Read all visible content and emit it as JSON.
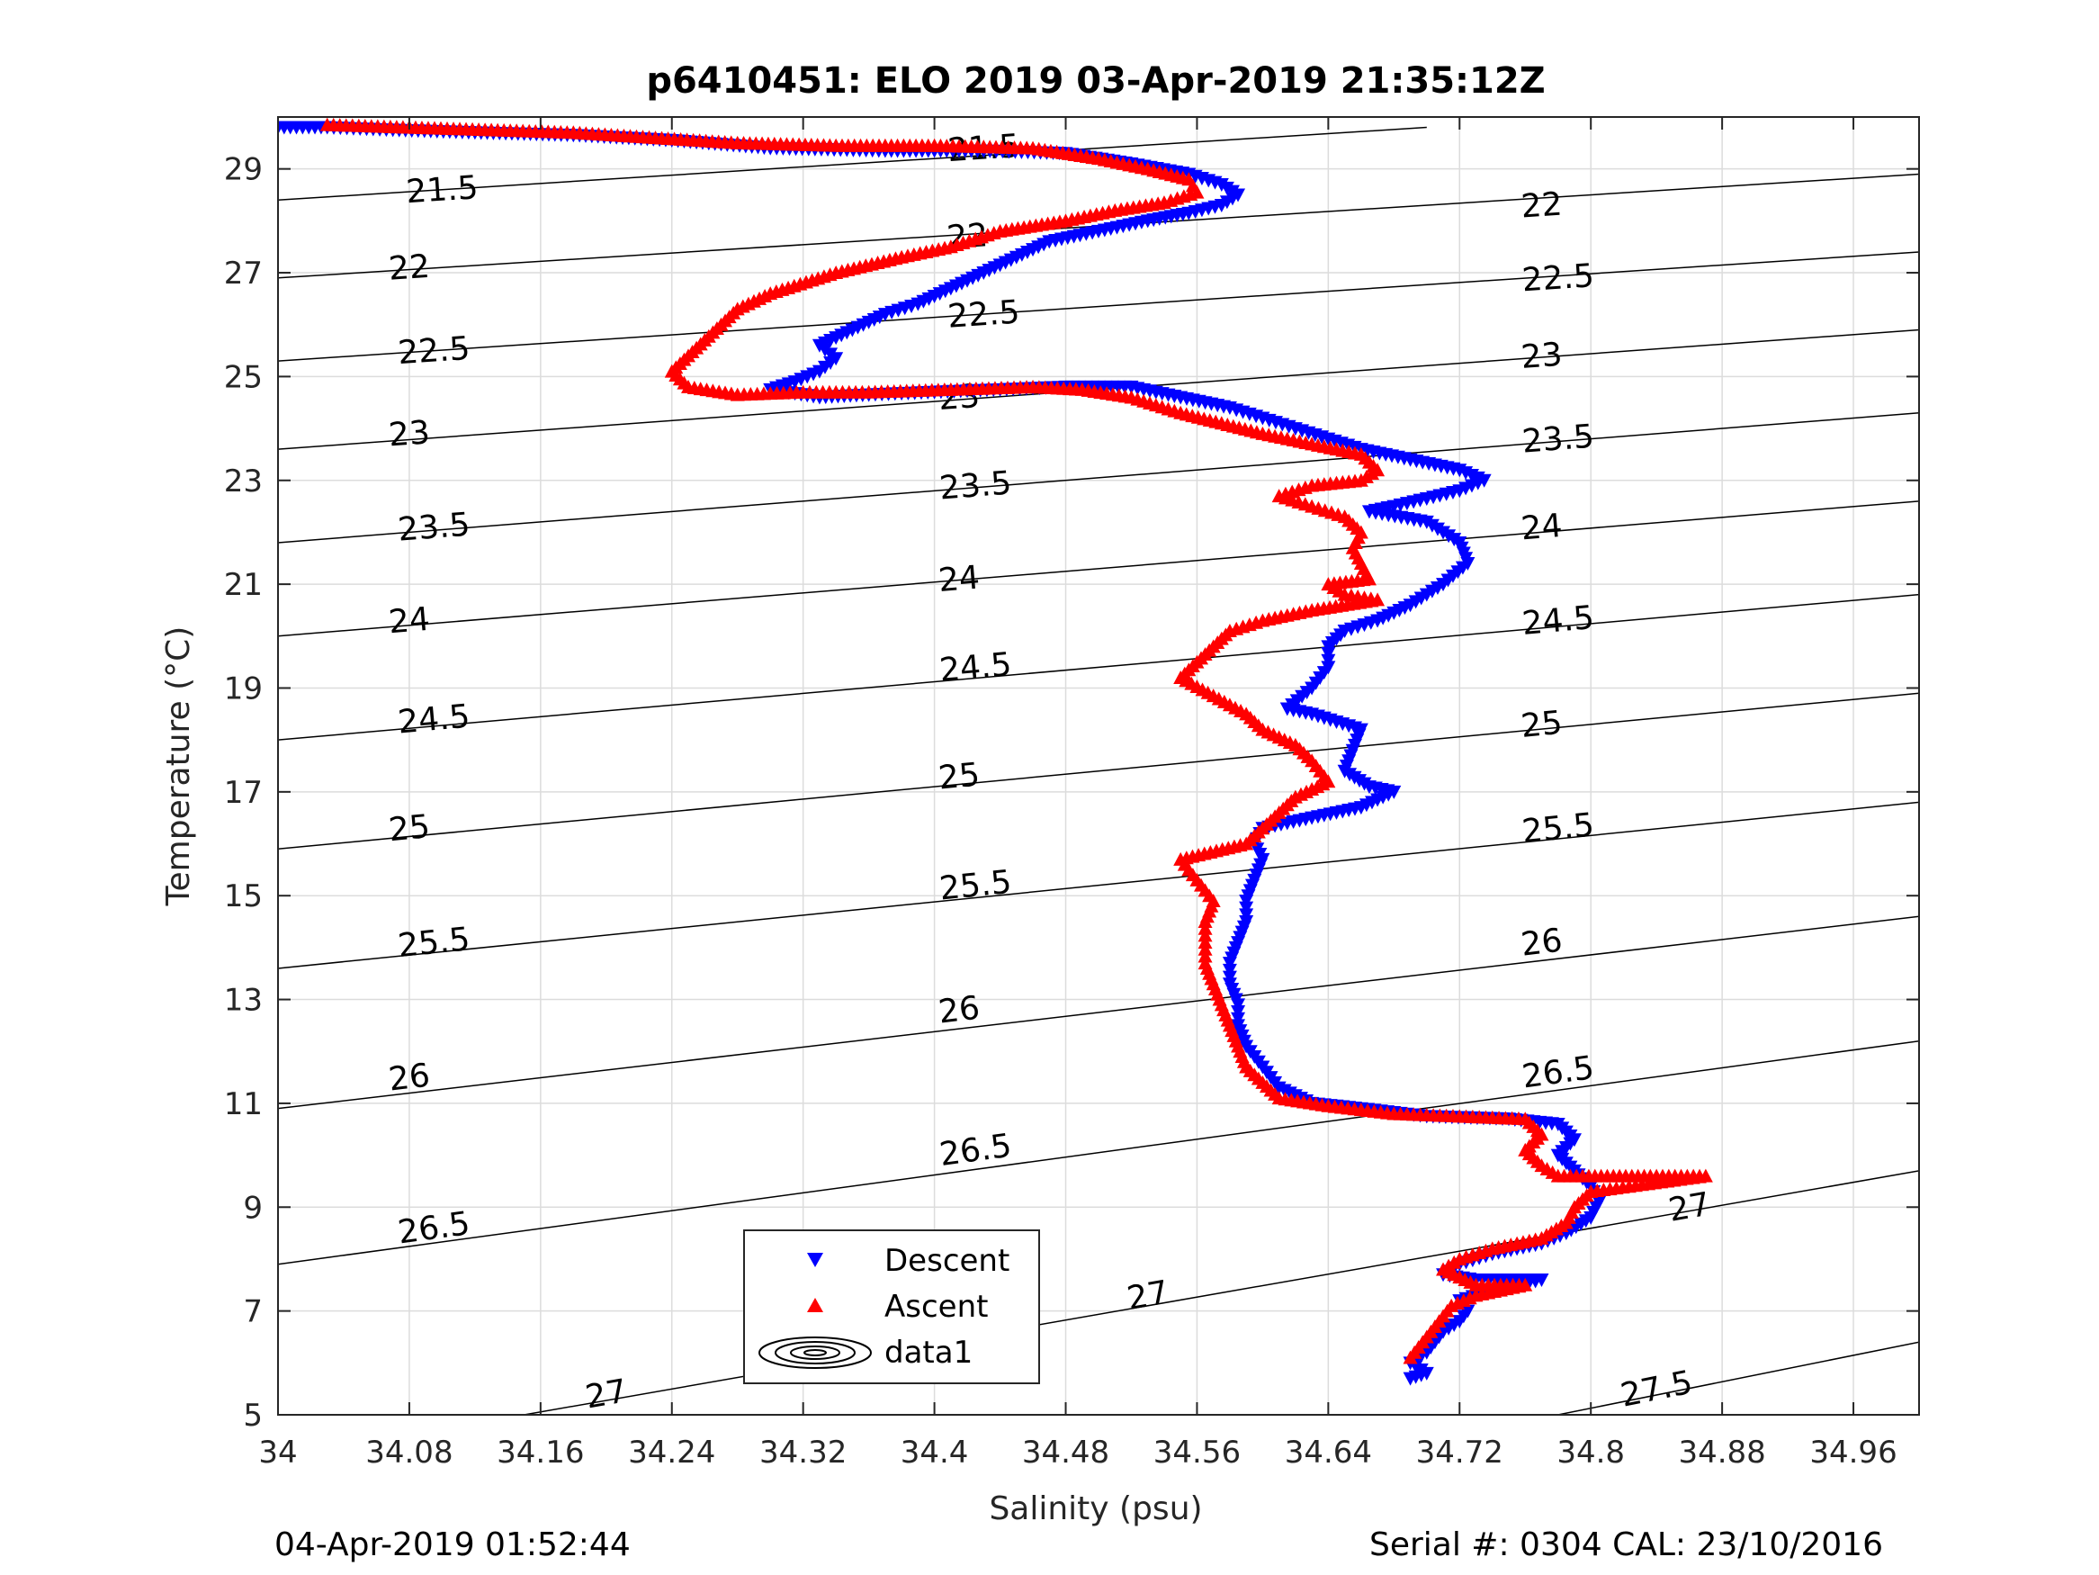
{
  "chart_data": {
    "type": "scatter",
    "title": "p6410451: ELO 2019 03-Apr-2019 21:35:12Z",
    "xlabel": "Salinity (psu)",
    "ylabel": "Temperature (°C)",
    "xlim": [
      34,
      35
    ],
    "ylim": [
      5,
      30
    ],
    "xticks": [
      "34",
      "34.08",
      "34.16",
      "34.24",
      "34.32",
      "34.4",
      "34.48",
      "34.56",
      "34.64",
      "34.72",
      "34.8",
      "34.88",
      "34.96"
    ],
    "yticks": [
      "5",
      "7",
      "9",
      "11",
      "13",
      "15",
      "17",
      "19",
      "21",
      "23",
      "25",
      "27",
      "29"
    ],
    "grid": true,
    "footer_left": "04-Apr-2019 01:52:44",
    "footer_right": "Serial #: 0304  CAL: 23/10/2016",
    "legend_position": "bottom-center",
    "legend": [
      {
        "name": "Descent",
        "marker": "triangle-down",
        "color": "#0000ff"
      },
      {
        "name": "Ascent",
        "marker": "triangle-up",
        "color": "#ff0000"
      },
      {
        "name": "data1",
        "marker": "contour",
        "color": "#000000"
      }
    ],
    "isopycnals": [
      {
        "label": "21.5",
        "points": [
          [
            34.0,
            28.4
          ],
          [
            34.7,
            29.8
          ]
        ],
        "labels_at": [
          [
            34.1,
            28.6
          ],
          [
            34.43,
            29.4
          ]
        ]
      },
      {
        "label": "22",
        "points": [
          [
            34.0,
            26.9
          ],
          [
            35.0,
            28.9
          ]
        ],
        "labels_at": [
          [
            34.08,
            27.1
          ],
          [
            34.42,
            27.7
          ],
          [
            34.77,
            28.3
          ]
        ]
      },
      {
        "label": "22.5",
        "points": [
          [
            34.0,
            25.3
          ],
          [
            35.0,
            27.4
          ]
        ],
        "labels_at": [
          [
            34.095,
            25.5
          ],
          [
            34.43,
            26.2
          ],
          [
            34.78,
            26.9
          ]
        ]
      },
      {
        "label": "23",
        "points": [
          [
            34.0,
            23.6
          ],
          [
            35.0,
            25.9
          ]
        ],
        "labels_at": [
          [
            34.08,
            23.9
          ],
          [
            34.415,
            24.6
          ],
          [
            34.77,
            25.4
          ]
        ]
      },
      {
        "label": "23.5",
        "points": [
          [
            34.0,
            21.8
          ],
          [
            35.0,
            24.3
          ]
        ],
        "labels_at": [
          [
            34.095,
            22.1
          ],
          [
            34.425,
            22.9
          ],
          [
            34.78,
            23.8
          ]
        ]
      },
      {
        "label": "24",
        "points": [
          [
            34.0,
            20.0
          ],
          [
            35.0,
            22.6
          ]
        ],
        "labels_at": [
          [
            34.08,
            20.3
          ],
          [
            34.415,
            21.1
          ],
          [
            34.77,
            22.1
          ]
        ]
      },
      {
        "label": "24.5",
        "points": [
          [
            34.0,
            18.0
          ],
          [
            35.0,
            20.8
          ]
        ],
        "labels_at": [
          [
            34.095,
            18.4
          ],
          [
            34.425,
            19.4
          ],
          [
            34.78,
            20.3
          ]
        ]
      },
      {
        "label": "25",
        "points": [
          [
            34.0,
            15.9
          ],
          [
            35.0,
            18.9
          ]
        ],
        "labels_at": [
          [
            34.08,
            16.3
          ],
          [
            34.415,
            17.3
          ],
          [
            34.77,
            18.3
          ]
        ]
      },
      {
        "label": "25.5",
        "points": [
          [
            34.0,
            13.6
          ],
          [
            35.0,
            16.8
          ]
        ],
        "labels_at": [
          [
            34.095,
            14.1
          ],
          [
            34.425,
            15.2
          ],
          [
            34.78,
            16.3
          ]
        ]
      },
      {
        "label": "26",
        "points": [
          [
            34.0,
            10.9
          ],
          [
            35.0,
            14.6
          ]
        ],
        "labels_at": [
          [
            34.08,
            11.5
          ],
          [
            34.415,
            12.8
          ],
          [
            34.77,
            14.1
          ]
        ]
      },
      {
        "label": "26.5",
        "points": [
          [
            34.0,
            7.9
          ],
          [
            35.0,
            12.2
          ]
        ],
        "labels_at": [
          [
            34.095,
            8.6
          ],
          [
            34.425,
            10.1
          ],
          [
            34.78,
            11.6
          ]
        ]
      },
      {
        "label": "27",
        "points": [
          [
            34.15,
            5.0
          ],
          [
            35.0,
            9.7
          ]
        ],
        "labels_at": [
          [
            34.2,
            5.4
          ],
          [
            34.53,
            7.3
          ],
          [
            34.86,
            9.0
          ]
        ]
      },
      {
        "label": "27.5",
        "points": [
          [
            34.78,
            5.0
          ],
          [
            35.0,
            6.4
          ]
        ],
        "labels_at": [
          [
            34.84,
            5.5
          ]
        ]
      }
    ],
    "series": [
      {
        "name": "Descent",
        "marker": "triangle-down",
        "color": "#0000ff",
        "points": [
          [
            34.0,
            29.8
          ],
          [
            34.03,
            29.8
          ],
          [
            34.07,
            29.75
          ],
          [
            34.12,
            29.7
          ],
          [
            34.18,
            29.65
          ],
          [
            34.24,
            29.55
          ],
          [
            34.3,
            29.4
          ],
          [
            34.37,
            29.35
          ],
          [
            34.43,
            29.35
          ],
          [
            34.48,
            29.3
          ],
          [
            34.52,
            29.1
          ],
          [
            34.555,
            28.9
          ],
          [
            34.575,
            28.7
          ],
          [
            34.585,
            28.5
          ],
          [
            34.575,
            28.3
          ],
          [
            34.555,
            28.15
          ],
          [
            34.53,
            28.0
          ],
          [
            34.5,
            27.8
          ],
          [
            34.47,
            27.6
          ],
          [
            34.45,
            27.3
          ],
          [
            34.43,
            27.0
          ],
          [
            34.41,
            26.7
          ],
          [
            34.39,
            26.4
          ],
          [
            34.37,
            26.2
          ],
          [
            34.35,
            25.9
          ],
          [
            34.33,
            25.6
          ],
          [
            34.34,
            25.35
          ],
          [
            34.33,
            25.1
          ],
          [
            34.315,
            24.9
          ],
          [
            34.3,
            24.75
          ],
          [
            34.33,
            24.6
          ],
          [
            34.36,
            24.65
          ],
          [
            34.4,
            24.7
          ],
          [
            34.44,
            24.75
          ],
          [
            34.48,
            24.8
          ],
          [
            34.52,
            24.8
          ],
          [
            34.55,
            24.6
          ],
          [
            34.58,
            24.4
          ],
          [
            34.6,
            24.2
          ],
          [
            34.62,
            24.0
          ],
          [
            34.64,
            23.8
          ],
          [
            34.66,
            23.6
          ],
          [
            34.69,
            23.4
          ],
          [
            34.72,
            23.2
          ],
          [
            34.735,
            23.0
          ],
          [
            34.72,
            22.8
          ],
          [
            34.7,
            22.65
          ],
          [
            34.68,
            22.5
          ],
          [
            34.665,
            22.4
          ],
          [
            34.7,
            22.2
          ],
          [
            34.72,
            21.8
          ],
          [
            34.725,
            21.4
          ],
          [
            34.71,
            21.0
          ],
          [
            34.69,
            20.6
          ],
          [
            34.67,
            20.3
          ],
          [
            34.65,
            20.1
          ],
          [
            34.64,
            19.8
          ],
          [
            34.64,
            19.4
          ],
          [
            34.63,
            19.0
          ],
          [
            34.615,
            18.6
          ],
          [
            34.63,
            18.5
          ],
          [
            34.66,
            18.2
          ],
          [
            34.655,
            17.8
          ],
          [
            34.65,
            17.4
          ],
          [
            34.665,
            17.1
          ],
          [
            34.68,
            17.0
          ],
          [
            34.66,
            16.7
          ],
          [
            34.63,
            16.5
          ],
          [
            34.6,
            16.3
          ],
          [
            34.595,
            16.0
          ],
          [
            34.6,
            15.7
          ],
          [
            34.595,
            15.3
          ],
          [
            34.59,
            14.9
          ],
          [
            34.59,
            14.5
          ],
          [
            34.585,
            14.1
          ],
          [
            34.58,
            13.7
          ],
          [
            34.58,
            13.3
          ],
          [
            34.585,
            12.9
          ],
          [
            34.585,
            12.5
          ],
          [
            34.59,
            12.1
          ],
          [
            34.6,
            11.7
          ],
          [
            34.61,
            11.3
          ],
          [
            34.63,
            11.0
          ],
          [
            34.66,
            10.9
          ],
          [
            34.7,
            10.75
          ],
          [
            34.75,
            10.7
          ],
          [
            34.78,
            10.6
          ],
          [
            34.79,
            10.3
          ],
          [
            34.78,
            10.0
          ],
          [
            34.79,
            9.7
          ],
          [
            34.8,
            9.4
          ],
          [
            34.805,
            9.1
          ],
          [
            34.8,
            8.8
          ],
          [
            34.785,
            8.5
          ],
          [
            34.77,
            8.3
          ],
          [
            34.74,
            8.1
          ],
          [
            34.72,
            7.9
          ],
          [
            34.71,
            7.7
          ],
          [
            34.73,
            7.6
          ],
          [
            34.77,
            7.6
          ],
          [
            34.74,
            7.4
          ],
          [
            34.72,
            7.2
          ],
          [
            34.725,
            7.0
          ],
          [
            34.72,
            6.8
          ],
          [
            34.71,
            6.6
          ],
          [
            34.705,
            6.4
          ],
          [
            34.7,
            6.2
          ],
          [
            34.69,
            6.0
          ],
          [
            34.7,
            5.8
          ],
          [
            34.69,
            5.7
          ]
        ]
      },
      {
        "name": "Ascent",
        "marker": "triangle-up",
        "color": "#ff0000",
        "points": [
          [
            34.03,
            29.85
          ],
          [
            34.08,
            29.8
          ],
          [
            34.13,
            29.75
          ],
          [
            34.18,
            29.7
          ],
          [
            34.23,
            29.6
          ],
          [
            34.28,
            29.5
          ],
          [
            34.34,
            29.45
          ],
          [
            34.4,
            29.45
          ],
          [
            34.46,
            29.4
          ],
          [
            34.5,
            29.2
          ],
          [
            34.53,
            29.0
          ],
          [
            34.555,
            28.8
          ],
          [
            34.56,
            28.55
          ],
          [
            34.54,
            28.35
          ],
          [
            34.51,
            28.2
          ],
          [
            34.48,
            28.0
          ],
          [
            34.44,
            27.8
          ],
          [
            34.41,
            27.5
          ],
          [
            34.38,
            27.3
          ],
          [
            34.34,
            27.0
          ],
          [
            34.3,
            26.6
          ],
          [
            34.28,
            26.3
          ],
          [
            34.27,
            26.0
          ],
          [
            34.26,
            25.7
          ],
          [
            34.25,
            25.4
          ],
          [
            34.24,
            25.1
          ],
          [
            34.25,
            24.8
          ],
          [
            34.28,
            24.65
          ],
          [
            34.32,
            24.7
          ],
          [
            34.36,
            24.7
          ],
          [
            34.41,
            24.75
          ],
          [
            34.46,
            24.8
          ],
          [
            34.49,
            24.75
          ],
          [
            34.52,
            24.6
          ],
          [
            34.55,
            24.3
          ],
          [
            34.575,
            24.1
          ],
          [
            34.6,
            23.9
          ],
          [
            34.63,
            23.7
          ],
          [
            34.66,
            23.5
          ],
          [
            34.67,
            23.2
          ],
          [
            34.66,
            23.0
          ],
          [
            34.63,
            22.9
          ],
          [
            34.61,
            22.7
          ],
          [
            34.63,
            22.5
          ],
          [
            34.65,
            22.3
          ],
          [
            34.66,
            22.0
          ],
          [
            34.655,
            21.7
          ],
          [
            34.66,
            21.4
          ],
          [
            34.665,
            21.1
          ],
          [
            34.64,
            21.0
          ],
          [
            34.65,
            20.8
          ],
          [
            34.67,
            20.7
          ],
          [
            34.63,
            20.5
          ],
          [
            34.6,
            20.3
          ],
          [
            34.58,
            20.1
          ],
          [
            34.57,
            19.8
          ],
          [
            34.56,
            19.5
          ],
          [
            34.55,
            19.2
          ],
          [
            34.59,
            18.5
          ],
          [
            34.6,
            18.2
          ],
          [
            34.62,
            17.9
          ],
          [
            34.63,
            17.6
          ],
          [
            34.64,
            17.2
          ],
          [
            34.62,
            16.9
          ],
          [
            34.61,
            16.6
          ],
          [
            34.6,
            16.3
          ],
          [
            34.59,
            16.0
          ],
          [
            34.55,
            15.7
          ],
          [
            34.56,
            15.3
          ],
          [
            34.57,
            14.9
          ],
          [
            34.565,
            14.5
          ],
          [
            34.565,
            14.1
          ],
          [
            34.565,
            13.7
          ],
          [
            34.57,
            13.3
          ],
          [
            34.575,
            12.9
          ],
          [
            34.58,
            12.5
          ],
          [
            34.585,
            12.1
          ],
          [
            34.59,
            11.7
          ],
          [
            34.6,
            11.4
          ],
          [
            34.61,
            11.1
          ],
          [
            34.64,
            10.95
          ],
          [
            34.68,
            10.8
          ],
          [
            34.72,
            10.75
          ],
          [
            34.76,
            10.7
          ],
          [
            34.77,
            10.4
          ],
          [
            34.76,
            10.1
          ],
          [
            34.77,
            9.8
          ],
          [
            34.78,
            9.6
          ],
          [
            34.81,
            9.6
          ],
          [
            34.87,
            9.6
          ],
          [
            34.8,
            9.3
          ],
          [
            34.79,
            9.0
          ],
          [
            34.785,
            8.7
          ],
          [
            34.77,
            8.4
          ],
          [
            34.74,
            8.2
          ],
          [
            34.72,
            8.0
          ],
          [
            34.71,
            7.8
          ],
          [
            34.73,
            7.5
          ],
          [
            34.76,
            7.5
          ],
          [
            34.73,
            7.3
          ],
          [
            34.715,
            7.1
          ],
          [
            34.71,
            6.9
          ],
          [
            34.705,
            6.7
          ],
          [
            34.7,
            6.5
          ],
          [
            34.695,
            6.3
          ],
          [
            34.69,
            6.1
          ]
        ]
      }
    ]
  }
}
